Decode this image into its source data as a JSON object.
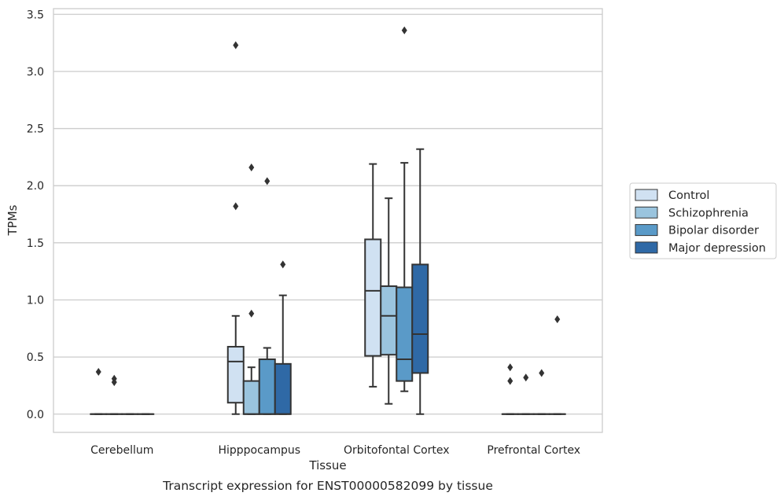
{
  "chart_data": {
    "type": "box",
    "xlabel": "Tissue",
    "ylabel": "TPMs",
    "caption": "Transcript expression for ENST00000582099 by tissue",
    "ylim": [
      -0.16,
      3.55
    ],
    "yticks": [
      0.0,
      0.5,
      1.0,
      1.5,
      2.0,
      2.5,
      3.0,
      3.5
    ],
    "ytick_labels": [
      "0.0",
      "0.5",
      "1.0",
      "1.5",
      "2.0",
      "2.5",
      "3.0",
      "3.5"
    ],
    "grid": "horizontal",
    "legend_position": "right",
    "categories": [
      "Cerebellum",
      "Hipppocampus",
      "Orbitofontal Cortex",
      "Prefrontal Cortex"
    ],
    "series": [
      {
        "name": "Control",
        "color": "#d0e1f2",
        "boxes": [
          {
            "q1": 0,
            "median": 0,
            "q3": 0,
            "whislo": 0,
            "whishi": 0,
            "fliers": [
              0.37
            ]
          },
          {
            "q1": 0.1,
            "median": 0.46,
            "q3": 0.59,
            "whislo": 0,
            "whishi": 0.86,
            "fliers": [
              3.23,
              1.82
            ]
          },
          {
            "q1": 0.51,
            "median": 1.08,
            "q3": 1.53,
            "whislo": 0.24,
            "whishi": 2.19,
            "fliers": []
          },
          {
            "q1": 0,
            "median": 0,
            "q3": 0,
            "whislo": 0,
            "whishi": 0,
            "fliers": [
              0.41,
              0.29
            ]
          }
        ]
      },
      {
        "name": "Schizophrenia",
        "color": "#9ac4de",
        "boxes": [
          {
            "q1": 0,
            "median": 0,
            "q3": 0,
            "whislo": 0,
            "whishi": 0,
            "fliers": [
              0.31,
              0.28
            ]
          },
          {
            "q1": 0,
            "median": 0,
            "q3": 0.29,
            "whislo": 0,
            "whishi": 0.41,
            "fliers": [
              2.16,
              0.88
            ]
          },
          {
            "q1": 0.52,
            "median": 0.86,
            "q3": 1.12,
            "whislo": 0.09,
            "whishi": 1.89,
            "fliers": []
          },
          {
            "q1": 0,
            "median": 0,
            "q3": 0,
            "whislo": 0,
            "whishi": 0,
            "fliers": [
              0.32
            ]
          }
        ]
      },
      {
        "name": "Bipolar disorder",
        "color": "#5a9ac8",
        "boxes": [
          {
            "q1": 0,
            "median": 0,
            "q3": 0,
            "whislo": 0,
            "whishi": 0,
            "fliers": []
          },
          {
            "q1": 0,
            "median": 0,
            "q3": 0.48,
            "whislo": 0,
            "whishi": 0.58,
            "fliers": [
              2.04
            ]
          },
          {
            "q1": 0.29,
            "median": 0.48,
            "q3": 1.11,
            "whislo": 0.2,
            "whishi": 2.2,
            "fliers": [
              3.36
            ]
          },
          {
            "q1": 0,
            "median": 0,
            "q3": 0,
            "whislo": 0,
            "whishi": 0,
            "fliers": [
              0.36
            ]
          }
        ]
      },
      {
        "name": "Major depression",
        "color": "#2f69a6",
        "boxes": [
          {
            "q1": 0,
            "median": 0,
            "q3": 0,
            "whislo": 0,
            "whishi": 0,
            "fliers": []
          },
          {
            "q1": 0,
            "median": 0,
            "q3": 0.44,
            "whislo": 0,
            "whishi": 1.04,
            "fliers": [
              1.31
            ]
          },
          {
            "q1": 0.36,
            "median": 0.7,
            "q3": 1.31,
            "whislo": 0,
            "whishi": 2.32,
            "fliers": []
          },
          {
            "q1": 0,
            "median": 0,
            "q3": 0,
            "whislo": 0,
            "whishi": 0,
            "fliers": [
              0.83
            ]
          }
        ]
      }
    ]
  }
}
